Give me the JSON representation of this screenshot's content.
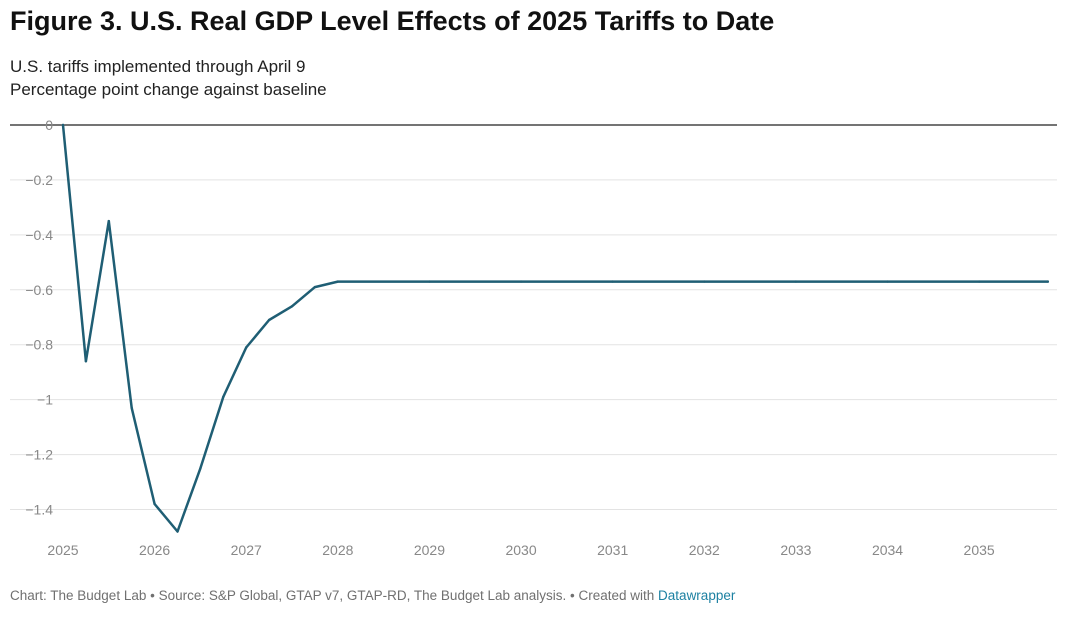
{
  "title": "Figure 3. U.S. Real GDP Level Effects of 2025 Tariffs to Date",
  "subtitle_lines": [
    "U.S. tariffs implemented through April 9",
    "Percentage point change against baseline"
  ],
  "footer": {
    "text": "Chart: The Budget Lab • Source: S&P Global, GTAP v7, GTAP-RD, The Budget Lab analysis. • Created with ",
    "link_label": "Datawrapper"
  },
  "colors": {
    "line": "#1f5e74",
    "grid": "#e3e3e3",
    "zero_line": "#222222",
    "tick_text": "#888888",
    "link": "#1d81a2"
  },
  "chart_data": {
    "type": "line",
    "title": "Figure 3. U.S. Real GDP Level Effects of 2025 Tariffs to Date",
    "ylim": [
      -1.5,
      0
    ],
    "xlim": [
      2025,
      2035.85
    ],
    "y_ticks": [
      0,
      -0.2,
      -0.4,
      -0.6,
      -0.8,
      -1,
      -1.2,
      -1.4
    ],
    "y_tick_labels": [
      "0",
      "−0.2",
      "−0.4",
      "−0.6",
      "−0.8",
      "−1",
      "−1.2",
      "−1.4"
    ],
    "x_ticks": [
      2025,
      2026,
      2027,
      2028,
      2029,
      2030,
      2031,
      2032,
      2033,
      2034,
      2035
    ],
    "x_tick_labels": [
      "2025",
      "2026",
      "2027",
      "2028",
      "2029",
      "2030",
      "2031",
      "2032",
      "2033",
      "2034",
      "2035"
    ],
    "grid": true,
    "legend": "none",
    "series": [
      {
        "x": [
          2025,
          2025.25,
          2025.5,
          2025.75,
          2026,
          2026.25,
          2026.5,
          2026.75,
          2027,
          2027.25,
          2027.5,
          2027.75,
          2028,
          2029,
          2030,
          2031,
          2032,
          2033,
          2034,
          2035,
          2035.75
        ],
        "y": [
          0,
          -0.86,
          -0.35,
          -1.03,
          -1.38,
          -1.48,
          -1.25,
          -0.99,
          -0.81,
          -0.71,
          -0.66,
          -0.59,
          -0.57,
          -0.57,
          -0.57,
          -0.57,
          -0.57,
          -0.57,
          -0.57,
          -0.57,
          -0.57
        ]
      }
    ]
  }
}
